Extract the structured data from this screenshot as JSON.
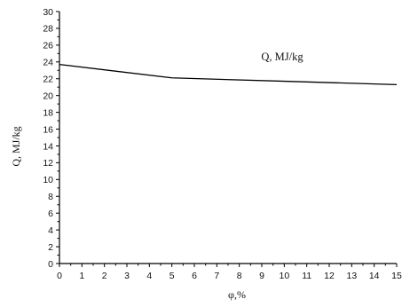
{
  "chart_data": {
    "type": "line",
    "xlabel": "φ,%",
    "ylabel": "Q, MJ/kg",
    "xlim": [
      0,
      15
    ],
    "ylim": [
      0,
      30
    ],
    "x_ticks": [
      0,
      1,
      2,
      3,
      4,
      5,
      6,
      7,
      8,
      9,
      10,
      11,
      12,
      13,
      14,
      15
    ],
    "y_ticks": [
      0,
      2,
      4,
      6,
      8,
      10,
      12,
      14,
      16,
      18,
      20,
      22,
      24,
      26,
      28,
      30
    ],
    "grid": false,
    "series": [
      {
        "name": "Q, MJ/kg",
        "x": [
          0,
          5,
          10,
          15
        ],
        "y": [
          23.7,
          22.1,
          21.7,
          21.3
        ],
        "color": "#000000"
      }
    ]
  }
}
